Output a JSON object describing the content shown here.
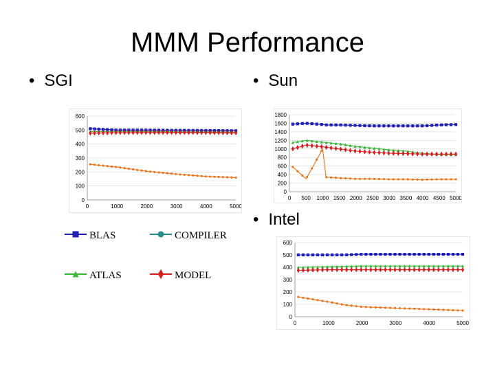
{
  "title": "MMM Performance",
  "bullets": {
    "sgi": "SGI",
    "sun": "Sun",
    "intel": "Intel"
  },
  "legend": [
    {
      "label": "BLAS",
      "color": "#1f1fb4",
      "marker": "square"
    },
    {
      "label": "COMPILER",
      "color": "#2a8c8c",
      "marker": "circle"
    },
    {
      "label": "ATLAS",
      "color": "#3cb43c",
      "marker": "triangle"
    },
    {
      "label": "MODEL",
      "color": "#d21e1e",
      "marker": "diamond"
    }
  ],
  "chart_data": [
    {
      "type": "line",
      "title": "SGI",
      "xlim": [
        0,
        5000
      ],
      "ylim": [
        0,
        600
      ],
      "x_ticks": [
        "0",
        "1000",
        "2000",
        "3000",
        "4000",
        "5000"
      ],
      "y_ticks": [
        "0",
        "100",
        "200",
        "300",
        "400",
        "500",
        "600"
      ],
      "x": [
        100,
        1000,
        2000,
        3000,
        4000,
        5000
      ],
      "series": [
        {
          "color": "#1f1fb4",
          "values": [
            510,
            500,
            500,
            498,
            497,
            495
          ]
        },
        {
          "color": "#3cb43c",
          "values": [
            490,
            490,
            490,
            488,
            487,
            486
          ]
        },
        {
          "color": "#d21e1e",
          "values": [
            478,
            482,
            483,
            483,
            482,
            480
          ]
        },
        {
          "color": "#e8741e",
          "values": [
            255,
            235,
            205,
            185,
            168,
            160
          ]
        }
      ]
    },
    {
      "type": "line",
      "title": "Sun",
      "xlim": [
        0,
        5000
      ],
      "ylim": [
        0,
        1800
      ],
      "x_ticks": [
        "0",
        "500",
        "1000",
        "1500",
        "2000",
        "2500",
        "3000",
        "3500",
        "4000",
        "4500",
        "5000"
      ],
      "y_ticks": [
        "0",
        "200",
        "400",
        "600",
        "800",
        "1000",
        "1200",
        "1400",
        "1600",
        "1800"
      ],
      "x": [
        100,
        500,
        1000,
        1100,
        1500,
        2000,
        2500,
        3000,
        3500,
        4000,
        4500,
        5000
      ],
      "series": [
        {
          "color": "#1f1fb4",
          "values": [
            1580,
            1600,
            1570,
            1560,
            1560,
            1550,
            1540,
            1540,
            1540,
            1540,
            1560,
            1570
          ]
        },
        {
          "color": "#3cb43c",
          "values": [
            1150,
            1200,
            1160,
            1150,
            1120,
            1060,
            1020,
            980,
            950,
            900,
            870,
            870
          ]
        },
        {
          "color": "#d21e1e",
          "values": [
            1000,
            1090,
            1050,
            1040,
            1000,
            950,
            920,
            900,
            890,
            880,
            880,
            880
          ]
        },
        {
          "color": "#e8741e",
          "values": [
            580,
            300,
            1000,
            340,
            320,
            300,
            300,
            290,
            290,
            280,
            290,
            290
          ]
        }
      ]
    },
    {
      "type": "line",
      "title": "Intel",
      "xlim": [
        0,
        5000
      ],
      "ylim": [
        0,
        600
      ],
      "x_ticks": [
        "0",
        "1000",
        "2000",
        "3000",
        "4000",
        "5000"
      ],
      "y_ticks": [
        "0",
        "100",
        "200",
        "300",
        "400",
        "500",
        "600"
      ],
      "x": [
        100,
        1000,
        1500,
        2000,
        3000,
        4000,
        5000
      ],
      "series": [
        {
          "color": "#1f1fb4",
          "values": [
            500,
            500,
            500,
            505,
            505,
            505,
            505
          ]
        },
        {
          "color": "#3cb43c",
          "values": [
            400,
            405,
            408,
            410,
            410,
            410,
            410
          ]
        },
        {
          "color": "#d21e1e",
          "values": [
            375,
            380,
            380,
            380,
            380,
            380,
            380
          ]
        },
        {
          "color": "#e8741e",
          "values": [
            160,
            120,
            95,
            80,
            70,
            60,
            50
          ]
        }
      ]
    }
  ]
}
